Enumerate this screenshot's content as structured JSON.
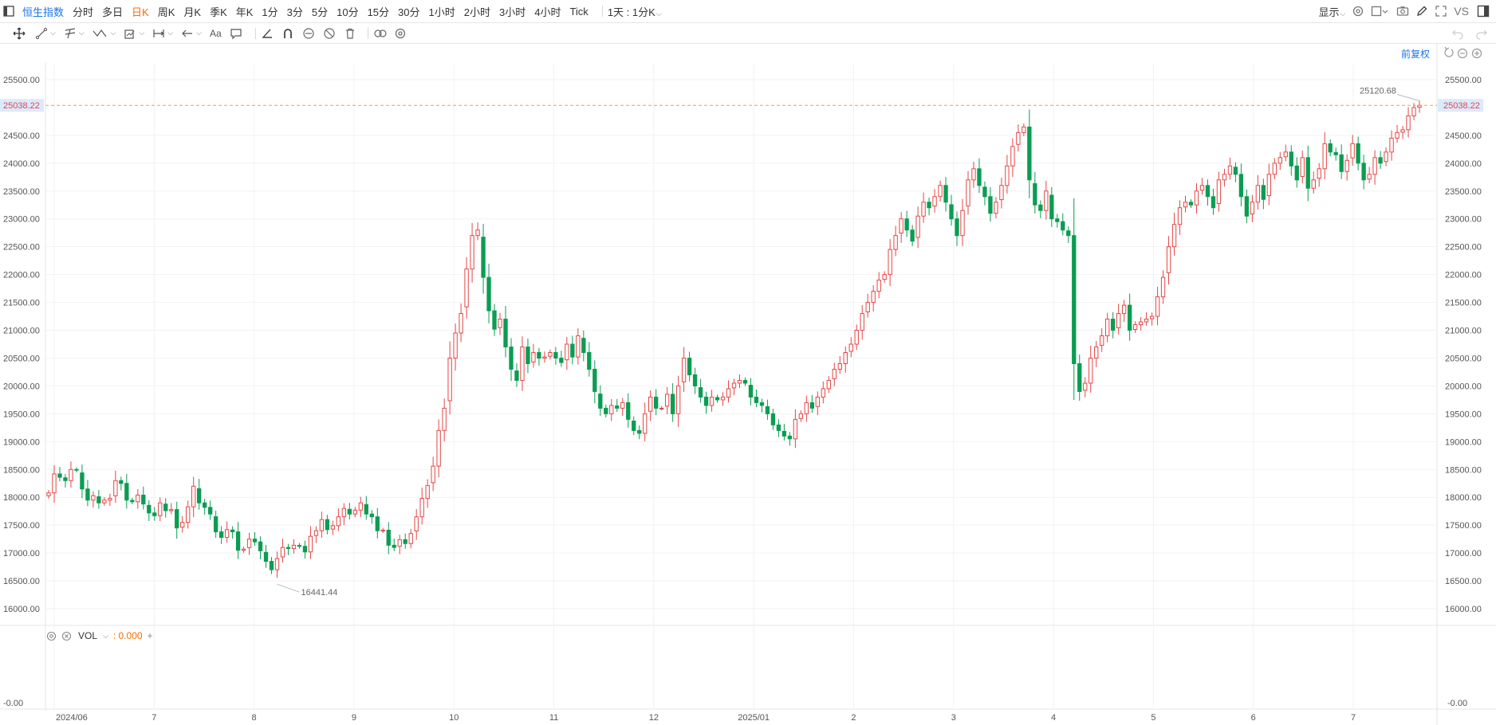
{
  "topbar": {
    "symbol": "恒生指数",
    "periods": [
      "分时",
      "多日",
      "日K",
      "周K",
      "月K",
      "季K",
      "年K",
      "1分",
      "3分",
      "5分",
      "10分",
      "15分",
      "30分",
      "1小时",
      "2小时",
      "3小时",
      "4小时",
      "Tick"
    ],
    "active_period": "日K",
    "interval_select": "1天 : 1分K",
    "display_label": "显示",
    "vs_label": "VS"
  },
  "chart": {
    "adjust_label": "前复权",
    "last_price": "25038.22",
    "y_ticks": [
      "25500.00",
      "24500.00",
      "24000.00",
      "23500.00",
      "23000.00",
      "22500.00",
      "22000.00",
      "21500.00",
      "21000.00",
      "20500.00",
      "20000.00",
      "19500.00",
      "19000.00",
      "18500.00",
      "18000.00",
      "17500.00",
      "17000.00",
      "16500.00",
      "16000.00"
    ],
    "high_label": "25120.68",
    "low_label": "16441.44",
    "x_labels": [
      "2024/06",
      "7",
      "8",
      "9",
      "10",
      "11",
      "12",
      "2025/01",
      "2",
      "3",
      "4",
      "5",
      "6",
      "7"
    ],
    "volume": {
      "name": "VOL",
      "value": ": 0.000",
      "axis_label": "-0.00"
    },
    "colors": {
      "up": "#e64545",
      "down": "#0a9d52",
      "price_line": "#ff9a3c",
      "price_tag_bg": "#dbeafd"
    }
  },
  "chart_data": {
    "type": "candlestick",
    "y_range": [
      15700,
      25800
    ],
    "high": 25120.68,
    "low": 16441.44,
    "last": 25038.22,
    "closes": [
      18080,
      18420,
      18360,
      18300,
      18500,
      18490,
      18150,
      17950,
      18030,
      17900,
      17950,
      17980,
      18300,
      18250,
      17950,
      17920,
      18040,
      17880,
      17720,
      17670,
      17900,
      17760,
      17780,
      17450,
      17550,
      17830,
      18200,
      17900,
      17820,
      17700,
      17380,
      17280,
      17420,
      17380,
      17050,
      17070,
      17250,
      17200,
      17040,
      16850,
      16700,
      16900,
      17100,
      17080,
      17140,
      17120,
      17020,
      17300,
      17400,
      17600,
      17420,
      17490,
      17650,
      17800,
      17700,
      17770,
      17900,
      17700,
      17650,
      17400,
      17410,
      17140,
      17100,
      17240,
      17170,
      17350,
      17650,
      17980,
      18210,
      18560,
      19200,
      19600,
      20500,
      20950,
      21300,
      22100,
      22700,
      22800,
      21950,
      21350,
      21020,
      21200,
      20700,
      20300,
      20100,
      20700,
      20400,
      20600,
      20500,
      20520,
      20600,
      20500,
      20420,
      20750,
      20520,
      20900,
      20600,
      20300,
      19900,
      19600,
      19500,
      19650,
      19600,
      19700,
      19400,
      19200,
      19150,
      19500,
      19800,
      19600,
      19600,
      19850,
      19500,
      20000,
      20500,
      20200,
      20000,
      19800,
      19650,
      19800,
      19750,
      19800,
      19950,
      20050,
      20100,
      20050,
      19800,
      19700,
      19650,
      19500,
      19300,
      19200,
      19100,
      19050,
      19400,
      19500,
      19700,
      19600,
      19800,
      19950,
      20100,
      20300,
      20400,
      20600,
      20750,
      21000,
      21300,
      21500,
      21700,
      21900,
      22000,
      22450,
      22700,
      23000,
      22800,
      22600,
      23050,
      23300,
      23200,
      23400,
      23600,
      23300,
      23000,
      22700,
      23150,
      23700,
      23900,
      23600,
      23400,
      23100,
      23300,
      23600,
      23950,
      24300,
      24550,
      24650,
      23700,
      23250,
      23150,
      23500,
      23000,
      22950,
      22800,
      22700,
      20400,
      19900,
      20050,
      20500,
      20700,
      20900,
      21200,
      21000,
      21300,
      21450,
      21000,
      21100,
      21150,
      21200,
      21250,
      21600,
      21950,
      22500,
      22900,
      23200,
      23300,
      23250,
      23500,
      23600,
      23400,
      23200,
      23700,
      23800,
      23950,
      23800,
      23400,
      23050,
      23300,
      23600,
      23350,
      23800,
      24000,
      24100,
      24200,
      23950,
      23700,
      24100,
      23550,
      23700,
      23900,
      24350,
      24200,
      24150,
      23850,
      24050,
      24350,
      24000,
      23700,
      23800,
      24100,
      24000,
      24200,
      24450,
      24550,
      24600,
      24850,
      25000,
      25038
    ],
    "series": [
      {
        "name": "VOL",
        "values": []
      }
    ]
  }
}
